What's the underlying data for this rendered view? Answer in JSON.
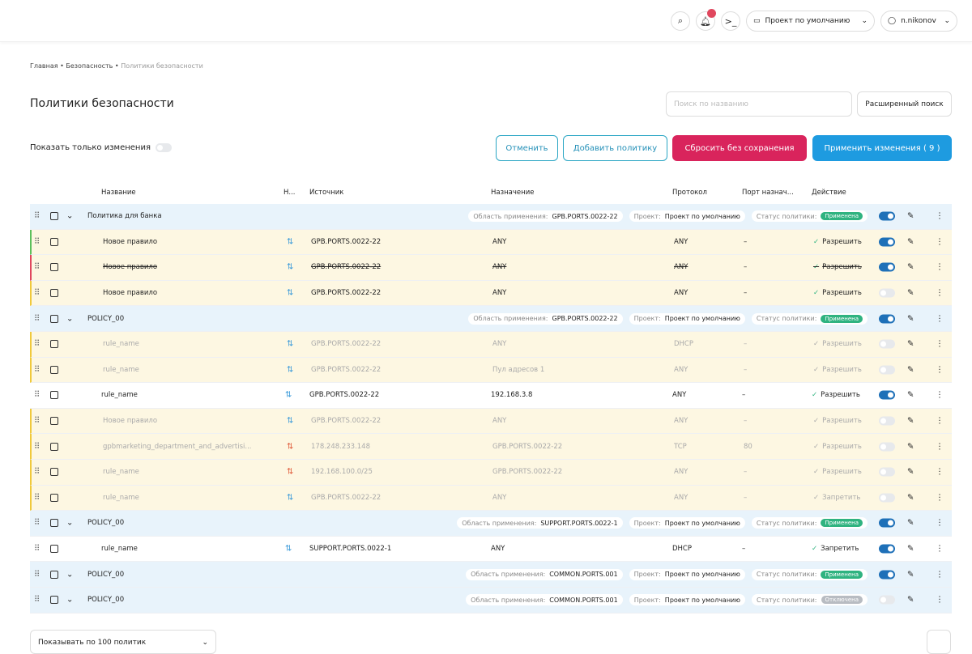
{
  "header": {
    "project": "Проект по умолчанию",
    "user": "n.nikonov"
  },
  "breadcrumbs": [
    "Главная",
    "Безопасность",
    "Политики безопасности"
  ],
  "title": "Политики безопасности",
  "search_placeholder": "Поиск по названию",
  "advanced_search": "Расширенный поиск",
  "show_changes": "Показать только изменения",
  "buttons": {
    "cancel": "Отменить",
    "add": "Добавить политику",
    "reset": "Сбросить без сохранения",
    "apply": "Применить изменения ( 9 )"
  },
  "columns": [
    "Название",
    "Н...",
    "Источник",
    "Назначение",
    "Протокол",
    "Порт назнач...",
    "Действие"
  ],
  "rows": [
    {
      "kind": "policy",
      "name": "Политика для банка",
      "scope_label": "Область применения:",
      "scope": "GPB.PORTS.0022-22",
      "project_label": "Проект:",
      "project": "Проект по умолчанию",
      "status_label": "Статус политики:",
      "status": "Применена",
      "status_color": "#2fb380",
      "enabled": true
    },
    {
      "kind": "rule",
      "name": "Новое правило",
      "source": "GPB.PORTS.0022-22",
      "destination": "ANY",
      "protocol": "ANY",
      "port": "–",
      "action": "Разрешить",
      "enabled": true,
      "highlight": true,
      "marker": "#5cc05c",
      "icon_color": "#3a9ad9"
    },
    {
      "kind": "rule",
      "name": "Новое правило",
      "source": "GPB.PORTS.0022-22",
      "destination": "ANY",
      "protocol": "ANY",
      "port": "–",
      "action": "Разрешить",
      "enabled": true,
      "highlight": true,
      "marker": "#e0475e",
      "strike": true,
      "icon_color": "#3a9ad9"
    },
    {
      "kind": "rule",
      "name": "Новое правило",
      "source": "GPB.PORTS.0022-22",
      "destination": "ANY",
      "protocol": "ANY",
      "port": "–",
      "action": "Разрешить",
      "enabled": false,
      "highlight": true,
      "marker": "#f0c93c",
      "icon_color": "#3a9ad9"
    },
    {
      "kind": "policy",
      "name": "POLICY_00",
      "scope_label": "Область применения:",
      "scope": "GPB.PORTS.0022-22",
      "project_label": "Проект:",
      "project": "Проект по умолчанию",
      "status_label": "Статус политики:",
      "status": "Применена",
      "status_color": "#2fb380",
      "enabled": true
    },
    {
      "kind": "rule",
      "name": "rule_name",
      "source": "GPB.PORTS.0022-22",
      "destination": "ANY",
      "protocol": "DHCP",
      "port": "–",
      "action": "Разрешить",
      "enabled": false,
      "highlight": true,
      "faded": true,
      "marker": "#f0c93c",
      "icon_color": "#3a9ad9"
    },
    {
      "kind": "rule",
      "name": "rule_name",
      "source": "GPB.PORTS.0022-22",
      "destination": "Пул адресов 1",
      "protocol": "ANY",
      "port": "–",
      "action": "Разрешить",
      "enabled": false,
      "highlight": true,
      "faded": true,
      "marker": "#f0c93c",
      "icon_color": "#3a9ad9"
    },
    {
      "kind": "rule",
      "name": "rule_name",
      "source": "GPB.PORTS.0022-22",
      "destination": "192.168.3.8",
      "protocol": "ANY",
      "port": "–",
      "action": "Разрешить",
      "enabled": true,
      "icon_color": "#3a9ad9"
    },
    {
      "kind": "rule",
      "name": "Новое правило",
      "source": "GPB.PORTS.0022-22",
      "destination": "ANY",
      "protocol": "ANY",
      "port": "–",
      "action": "Разрешить",
      "enabled": false,
      "highlight": true,
      "faded": true,
      "marker": "#f0c93c",
      "icon_color": "#3a9ad9"
    },
    {
      "kind": "rule",
      "name": "gpbmarketing_department_and_advertisi...",
      "source": "178.248.233.148",
      "destination": "GPB.PORTS.0022-22",
      "protocol": "TCP",
      "port": "80",
      "action": "Разрешить",
      "enabled": false,
      "highlight": true,
      "faded": true,
      "marker": "#f0c93c",
      "icon_color": "#e05a3a"
    },
    {
      "kind": "rule",
      "name": "rule_name",
      "source": "192.168.100.0/25",
      "destination": "GPB.PORTS.0022-22",
      "protocol": "ANY",
      "port": "–",
      "action": "Разрешить",
      "enabled": false,
      "highlight": true,
      "faded": true,
      "marker": "#f0c93c",
      "icon_color": "#e05a3a"
    },
    {
      "kind": "rule",
      "name": "rule_name",
      "source": "GPB.PORTS.0022-22",
      "destination": "ANY",
      "protocol": "ANY",
      "port": "–",
      "action": "Запретить",
      "enabled": false,
      "highlight": true,
      "faded": true,
      "marker": "#f0c93c",
      "icon_color": "#3a9ad9"
    },
    {
      "kind": "policy",
      "name": "POLICY_00",
      "scope_label": "Область применения:",
      "scope": "SUPPORT.PORTS.0022-1",
      "project_label": "Проект:",
      "project": "Проект по умолчанию",
      "status_label": "Статус политики:",
      "status": "Применена",
      "status_color": "#2fb380",
      "enabled": true
    },
    {
      "kind": "rule",
      "name": "rule_name",
      "source": "SUPPORT.PORTS.0022-1",
      "destination": "ANY",
      "protocol": "DHCP",
      "port": "–",
      "action": "Запретить",
      "enabled": true,
      "icon_color": "#3a9ad9"
    },
    {
      "kind": "policy",
      "name": "POLICY_00",
      "scope_label": "Область применения:",
      "scope": "COMMON.PORTS.001",
      "project_label": "Проект:",
      "project": "Проект по умолчанию",
      "status_label": "Статус политики:",
      "status": "Применена",
      "status_color": "#2fb380",
      "enabled": true
    },
    {
      "kind": "policy",
      "name": "POLICY_00",
      "scope_label": "Область применения:",
      "scope": "COMMON.PORTS.001",
      "project_label": "Проект:",
      "project": "Проект по умолчанию",
      "status_label": "Статус политики:",
      "status": "Отключена",
      "status_color": "#b8bcc2",
      "enabled": false
    }
  ],
  "page_size": "Показывать по 100 политик"
}
